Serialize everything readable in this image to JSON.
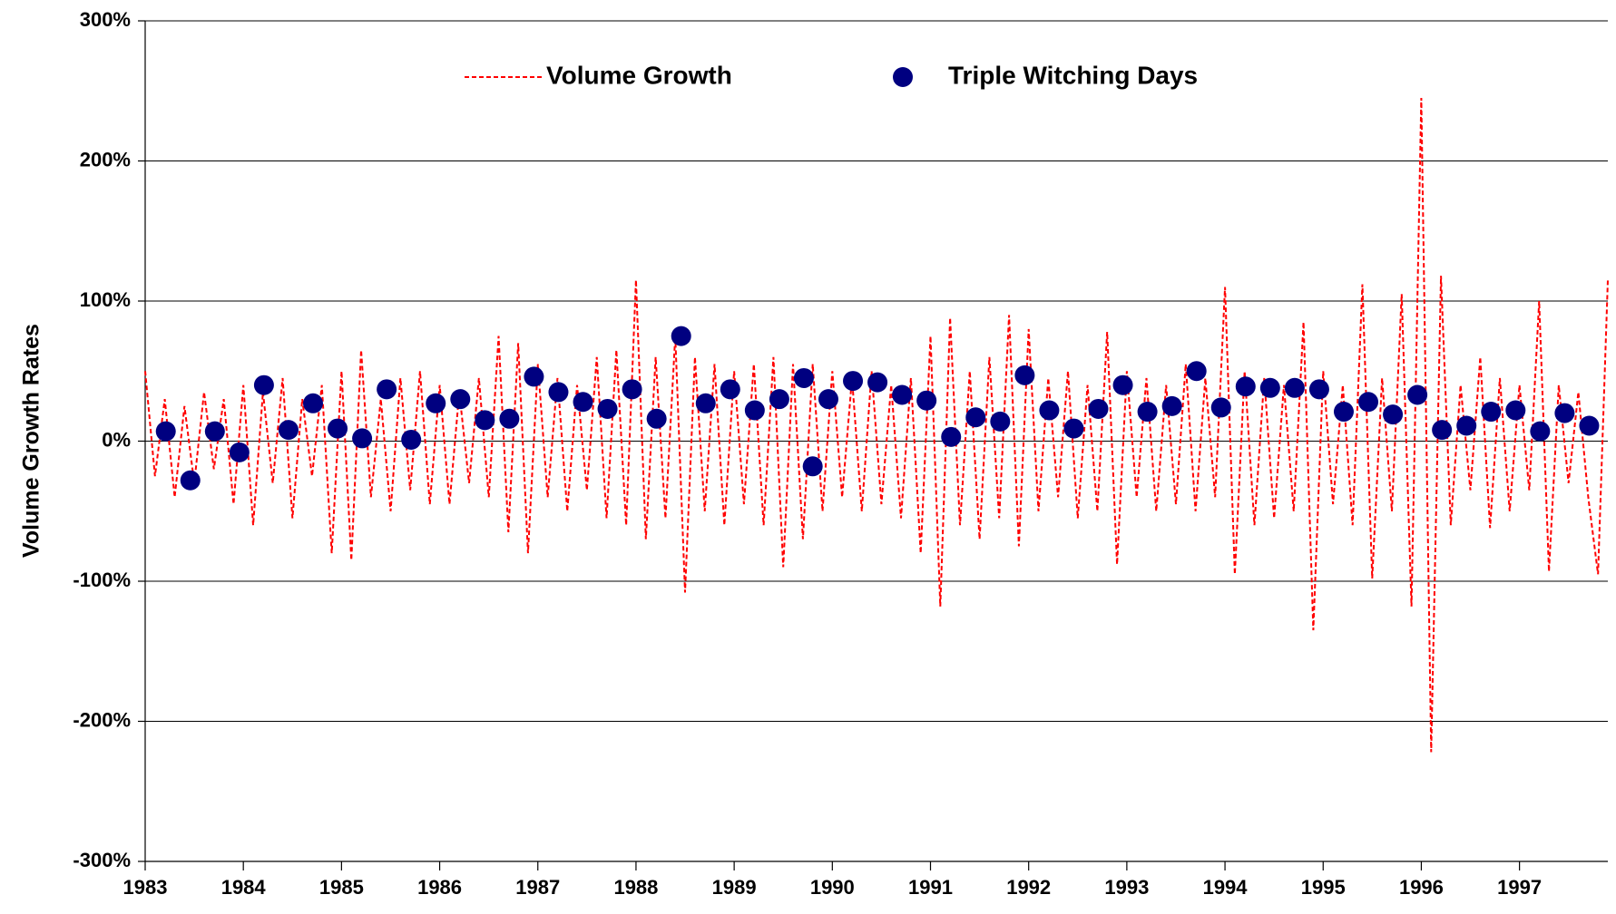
{
  "chart_data": {
    "type": "line_scatter",
    "y_label": "Volume Growth Rates",
    "ylim": [
      -300,
      300
    ],
    "yticks": [
      {
        "value": -300,
        "label": "-300%"
      },
      {
        "value": -200,
        "label": "-200%"
      },
      {
        "value": -100,
        "label": "-100%"
      },
      {
        "value": 0,
        "label": "0%"
      },
      {
        "value": 100,
        "label": "100%"
      },
      {
        "value": 200,
        "label": "200%"
      },
      {
        "value": 300,
        "label": "300%"
      }
    ],
    "xlim": [
      1983,
      1997.9
    ],
    "xticks": [
      1983,
      1984,
      1985,
      1986,
      1987,
      1988,
      1989,
      1990,
      1991,
      1992,
      1993,
      1994,
      1995,
      1996,
      1997
    ],
    "grid": true,
    "legend": "top",
    "series": [
      {
        "name": "Volume Growth",
        "kind": "line",
        "color": "#ff0000",
        "x": [
          1983.0,
          1983.1,
          1983.2,
          1983.3,
          1983.4,
          1983.5,
          1983.6,
          1983.7,
          1983.8,
          1983.9,
          1984.0,
          1984.1,
          1984.2,
          1984.3,
          1984.4,
          1984.5,
          1984.6,
          1984.7,
          1984.8,
          1984.9,
          1985.0,
          1985.1,
          1985.2,
          1985.3,
          1985.4,
          1985.5,
          1985.6,
          1985.7,
          1985.8,
          1985.9,
          1986.0,
          1986.1,
          1986.2,
          1986.3,
          1986.4,
          1986.5,
          1986.6,
          1986.7,
          1986.8,
          1986.9,
          1987.0,
          1987.1,
          1987.2,
          1987.3,
          1987.4,
          1987.5,
          1987.6,
          1987.7,
          1987.8,
          1987.9,
          1988.0,
          1988.1,
          1988.2,
          1988.3,
          1988.4,
          1988.5,
          1988.6,
          1988.7,
          1988.8,
          1988.9,
          1989.0,
          1989.1,
          1989.2,
          1989.3,
          1989.4,
          1989.5,
          1989.6,
          1989.7,
          1989.8,
          1989.9,
          1990.0,
          1990.1,
          1990.2,
          1990.3,
          1990.4,
          1990.5,
          1990.6,
          1990.7,
          1990.8,
          1990.9,
          1991.0,
          1991.1,
          1991.2,
          1991.3,
          1991.4,
          1991.5,
          1991.6,
          1991.7,
          1991.8,
          1991.9,
          1992.0,
          1992.1,
          1992.2,
          1992.3,
          1992.4,
          1992.5,
          1992.6,
          1992.7,
          1992.8,
          1992.9,
          1993.0,
          1993.1,
          1993.2,
          1993.3,
          1993.4,
          1993.5,
          1993.6,
          1993.7,
          1993.8,
          1993.9,
          1994.0,
          1994.1,
          1994.2,
          1994.3,
          1994.4,
          1994.5,
          1994.6,
          1994.7,
          1994.8,
          1994.9,
          1995.0,
          1995.1,
          1995.2,
          1995.3,
          1995.4,
          1995.5,
          1995.6,
          1995.7,
          1995.8,
          1995.9,
          1996.0,
          1996.1,
          1996.2,
          1996.3,
          1996.4,
          1996.5,
          1996.6,
          1996.7,
          1996.8,
          1996.9,
          1997.0,
          1997.1,
          1997.2,
          1997.3,
          1997.4,
          1997.5,
          1997.6,
          1997.7,
          1997.8,
          1997.9
        ],
        "values": [
          50,
          -25,
          30,
          -40,
          25,
          -30,
          35,
          -20,
          30,
          -45,
          40,
          -60,
          35,
          -30,
          45,
          -55,
          30,
          -25,
          40,
          -80,
          50,
          -85,
          65,
          -40,
          30,
          -50,
          45,
          -35,
          50,
          -45,
          40,
          -45,
          35,
          -30,
          45,
          -40,
          75,
          -65,
          70,
          -80,
          55,
          -40,
          45,
          -50,
          40,
          -35,
          60,
          -55,
          65,
          -60,
          115,
          -70,
          60,
          -55,
          75,
          -108,
          60,
          -50,
          55,
          -60,
          50,
          -45,
          55,
          -60,
          60,
          -90,
          55,
          -70,
          55,
          -50,
          50,
          -40,
          45,
          -50,
          50,
          -45,
          40,
          -55,
          45,
          -80,
          75,
          -118,
          88,
          -60,
          50,
          -70,
          60,
          -55,
          90,
          -75,
          80,
          -50,
          45,
          -40,
          50,
          -55,
          40,
          -50,
          78,
          -88,
          50,
          -40,
          45,
          -50,
          40,
          -45,
          55,
          -50,
          45,
          -40,
          110,
          -95,
          50,
          -60,
          45,
          -55,
          40,
          -50,
          85,
          -135,
          50,
          -45,
          40,
          -60,
          112,
          -98,
          45,
          -50,
          105,
          -118,
          245,
          -222,
          118,
          -60,
          40,
          -35,
          60,
          -62,
          45,
          -50,
          40,
          -35,
          100,
          -93,
          40,
          -30,
          35,
          -40,
          -95,
          115
        ]
      },
      {
        "name": "Triple Witching Days",
        "kind": "scatter",
        "color": "#000080",
        "x": [
          1983.21,
          1983.46,
          1983.71,
          1983.96,
          1984.21,
          1984.46,
          1984.71,
          1984.96,
          1985.21,
          1985.46,
          1985.71,
          1985.96,
          1986.21,
          1986.46,
          1986.71,
          1986.96,
          1987.21,
          1987.46,
          1987.71,
          1987.96,
          1988.21,
          1988.46,
          1988.71,
          1988.96,
          1989.21,
          1989.46,
          1989.71,
          1989.8,
          1989.96,
          1990.21,
          1990.46,
          1990.71,
          1990.96,
          1991.21,
          1991.46,
          1991.71,
          1991.96,
          1992.21,
          1992.46,
          1992.71,
          1992.96,
          1993.21,
          1993.46,
          1993.71,
          1993.96,
          1994.21,
          1994.46,
          1994.71,
          1994.96,
          1995.21,
          1995.46,
          1995.71,
          1995.96,
          1996.21,
          1996.46,
          1996.71,
          1996.96,
          1997.21,
          1997.46,
          1997.71
        ],
        "values": [
          7,
          -28,
          7,
          -8,
          40,
          8,
          27,
          9,
          2,
          37,
          1,
          27,
          30,
          15,
          16,
          46,
          35,
          28,
          23,
          37,
          16,
          75,
          27,
          37,
          22,
          30,
          45,
          -18,
          30,
          43,
          42,
          33,
          29,
          3,
          17,
          14,
          47,
          22,
          9,
          23,
          40,
          21,
          25,
          50,
          24,
          39,
          38,
          38,
          37,
          21,
          28,
          19,
          33,
          8,
          11,
          21,
          22,
          7,
          20,
          11
        ]
      }
    ]
  }
}
